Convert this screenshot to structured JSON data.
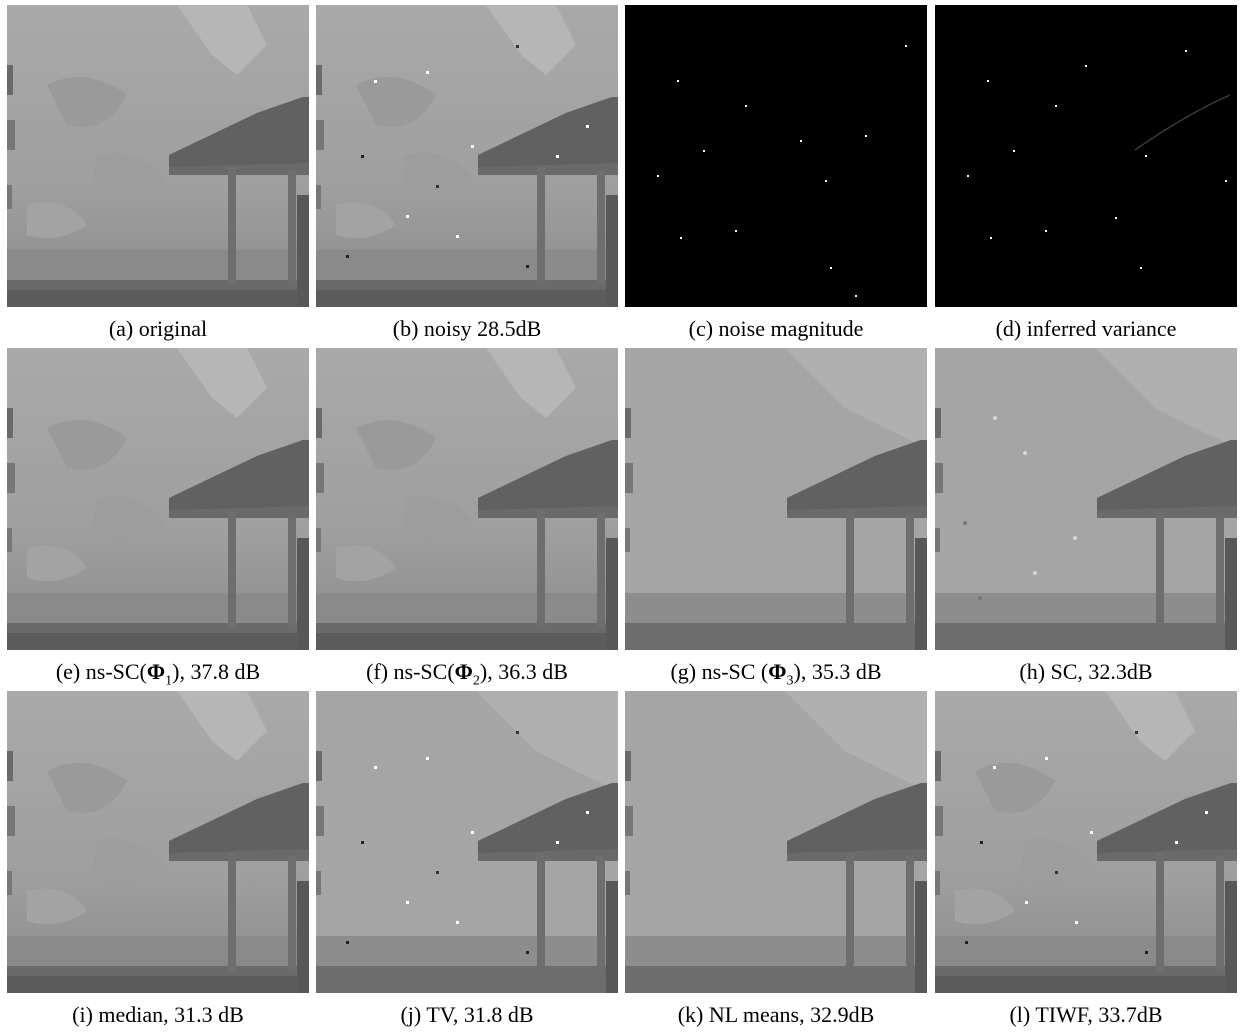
{
  "figure": {
    "panels": [
      {
        "id": "a",
        "caption": "(a) original",
        "variant": "photo"
      },
      {
        "id": "b",
        "caption": "(b) noisy 28.5dB",
        "variant": "noisy"
      },
      {
        "id": "c",
        "caption": "(c) noise magnitude",
        "variant": "noise"
      },
      {
        "id": "d",
        "caption": "(d) inferred variance",
        "variant": "variance"
      },
      {
        "id": "e",
        "caption_parts": [
          "(e) ns-SC(",
          "Φ",
          "1",
          "), 37.8 dB"
        ],
        "variant": "photo"
      },
      {
        "id": "f",
        "caption_parts": [
          "(f) ns-SC(",
          "Φ",
          "2",
          "), 36.3 dB"
        ],
        "variant": "photo"
      },
      {
        "id": "g",
        "caption_parts": [
          "(g) ns-SC (",
          "Φ",
          "3",
          "), 35.3 dB"
        ],
        "variant": "smooth"
      },
      {
        "id": "h",
        "caption": "(h) SC, 32.3dB",
        "variant": "sc"
      },
      {
        "id": "i",
        "caption": "(i) median, 31.3 dB",
        "variant": "photo"
      },
      {
        "id": "j",
        "caption": "(j) TV, 31.8 dB",
        "variant": "tv"
      },
      {
        "id": "k",
        "caption": "(k) NL means, 32.9dB",
        "variant": "smooth"
      },
      {
        "id": "l",
        "caption": "(l) TIWF, 33.7dB",
        "variant": "noisy"
      }
    ]
  }
}
